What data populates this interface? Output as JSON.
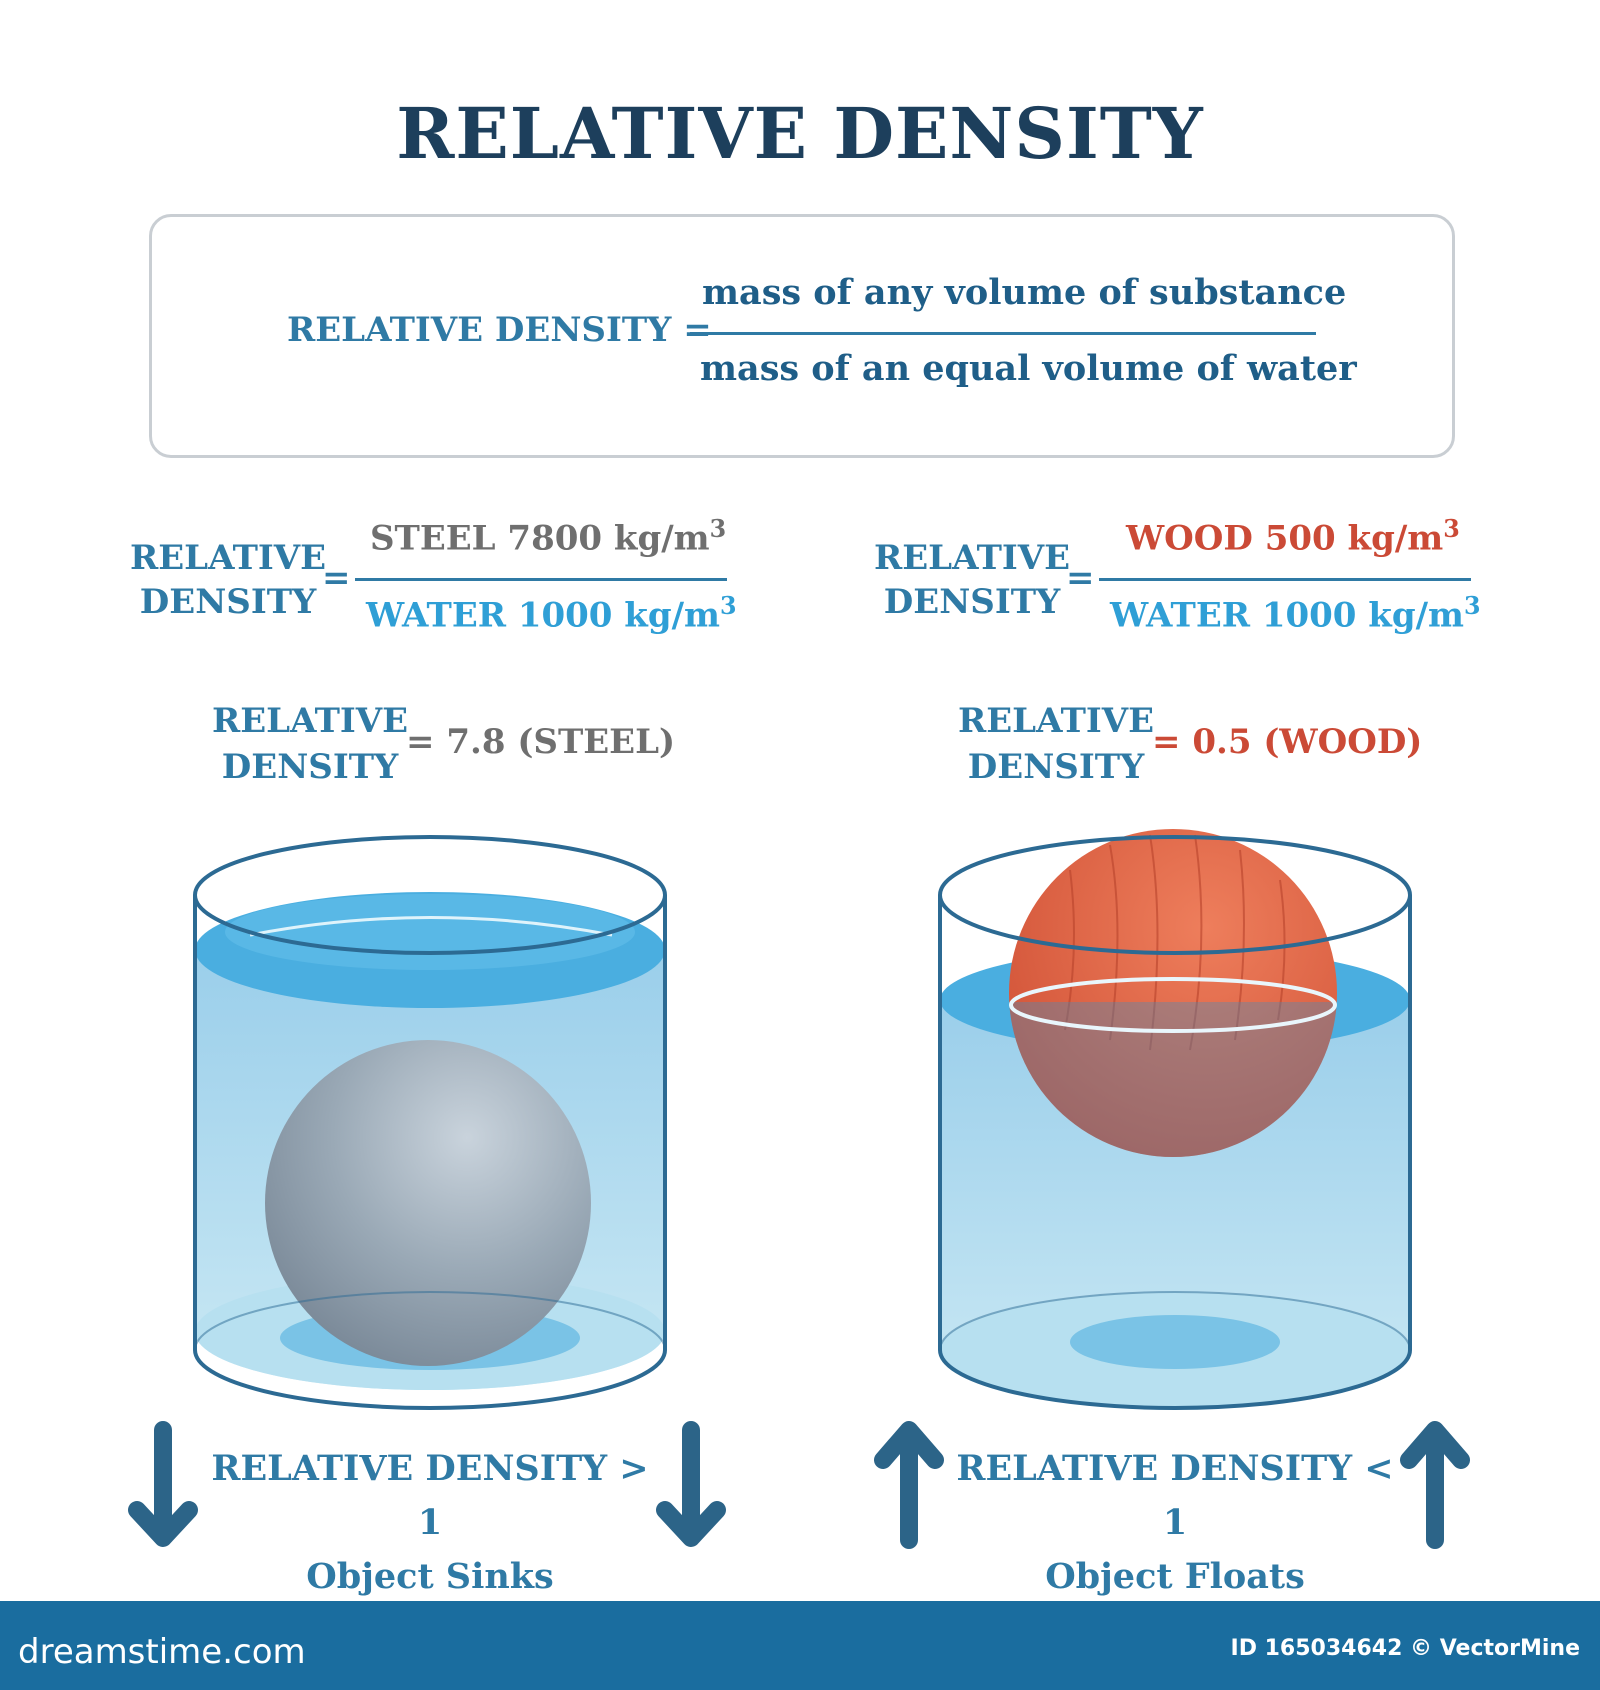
{
  "title": "RELATIVE DENSITY",
  "definition": {
    "label": "RELATIVE DENSITY",
    "equals": "=",
    "numerator": "mass of any volume of substance",
    "denominator": "mass of an equal volume of water"
  },
  "steel": {
    "label_line1": "RELATIVE",
    "label_line2": "DENSITY",
    "equals": "=",
    "numerator": "STEEL 7800 kg/m",
    "numerator_exp": "3",
    "denominator": "WATER 1000 kg/m",
    "denominator_exp": "3",
    "result_label_line1": "RELATIVE",
    "result_label_line2": "DENSITY",
    "result": "= 7.8 (STEEL)",
    "caption_line1": "RELATIVE DENSITY > 1",
    "caption_line2": "Object Sinks",
    "arrow_direction": "down"
  },
  "wood": {
    "label_line1": "RELATIVE",
    "label_line2": "DENSITY",
    "equals": "=",
    "numerator": "WOOD 500 kg/m",
    "numerator_exp": "3",
    "denominator": "WATER 1000 kg/m",
    "denominator_exp": "3",
    "result_label_line1": "RELATIVE",
    "result_label_line2": "DENSITY",
    "result": "= 0.5 (WOOD)",
    "caption_line1": "RELATIVE DENSITY < 1",
    "caption_line2": "Object Floats",
    "arrow_direction": "up"
  },
  "footer": {
    "site": "dreamstime.com",
    "credit": "ID 165034642 © VectorMine"
  },
  "colors": {
    "title": "#1d3f5c",
    "teal": "#2f7aa5",
    "water": "#2f9fd6",
    "steel_text": "#6f6f6f",
    "wood_text": "#cb4a36",
    "footer_bg": "#1a6d9f",
    "arrow": "#2c6488"
  },
  "icons": [
    "down-arrow-icon",
    "up-arrow-icon",
    "steel-ball-icon",
    "wood-ball-icon",
    "glass-container-icon"
  ]
}
